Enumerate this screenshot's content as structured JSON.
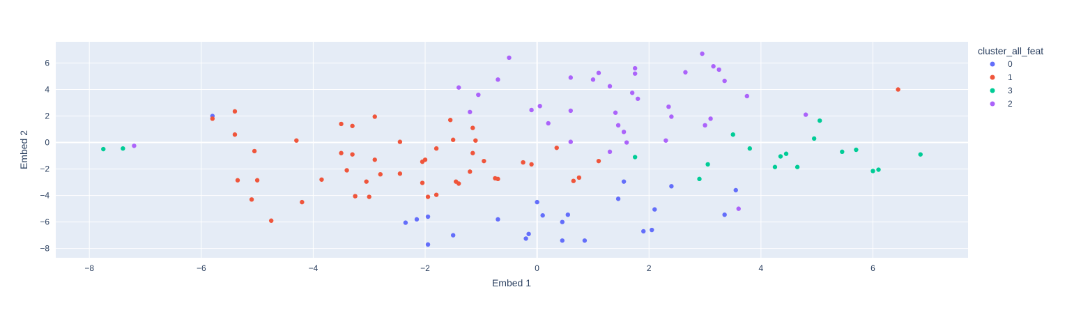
{
  "chart_data": {
    "type": "scatter",
    "xlabel": "Embed 1",
    "ylabel": "Embed 2",
    "xlim": [
      -8.6,
      7.7
    ],
    "ylim": [
      -8.7,
      7.6
    ],
    "xticks": [
      -8,
      -6,
      -4,
      -2,
      0,
      2,
      4,
      6
    ],
    "yticks": [
      -8,
      -6,
      -4,
      -2,
      0,
      2,
      4,
      6
    ],
    "grid": true,
    "legend": {
      "title": "cluster_all_feat",
      "placement": "right",
      "entries": [
        "0",
        "1",
        "3",
        "2"
      ]
    },
    "series": [
      {
        "name": "0",
        "color": "#636efa",
        "points": [
          [
            -5.8,
            2.0
          ],
          [
            -2.35,
            -6.05
          ],
          [
            -2.15,
            -5.8
          ],
          [
            -1.95,
            -5.6
          ],
          [
            -1.95,
            -7.7
          ],
          [
            -1.5,
            -7.0
          ],
          [
            -0.7,
            -5.8
          ],
          [
            -0.2,
            -7.25
          ],
          [
            -0.15,
            -6.9
          ],
          [
            0.0,
            -4.5
          ],
          [
            0.1,
            -5.5
          ],
          [
            0.45,
            -6.0
          ],
          [
            0.45,
            -7.4
          ],
          [
            0.55,
            -5.45
          ],
          [
            0.85,
            -7.4
          ],
          [
            1.45,
            -4.25
          ],
          [
            1.55,
            -2.95
          ],
          [
            1.9,
            -6.7
          ],
          [
            2.05,
            -6.6
          ],
          [
            2.1,
            -5.05
          ],
          [
            2.4,
            -3.3
          ],
          [
            3.55,
            -3.6
          ],
          [
            3.35,
            -5.45
          ]
        ]
      },
      {
        "name": "1",
        "color": "#ef553b",
        "points": [
          [
            -5.8,
            1.8
          ],
          [
            -5.4,
            2.35
          ],
          [
            -5.4,
            0.6
          ],
          [
            -5.35,
            -2.85
          ],
          [
            -5.05,
            -0.65
          ],
          [
            -5.0,
            -2.85
          ],
          [
            -5.1,
            -4.3
          ],
          [
            -4.75,
            -5.9
          ],
          [
            -4.3,
            0.15
          ],
          [
            -4.2,
            -4.5
          ],
          [
            -3.85,
            -2.8
          ],
          [
            -3.5,
            1.4
          ],
          [
            -3.5,
            -0.8
          ],
          [
            -3.4,
            -2.1
          ],
          [
            -3.3,
            1.25
          ],
          [
            -3.3,
            -0.9
          ],
          [
            -3.25,
            -4.05
          ],
          [
            -3.05,
            -2.95
          ],
          [
            -3.0,
            -4.1
          ],
          [
            -2.9,
            1.95
          ],
          [
            -2.9,
            -1.3
          ],
          [
            -2.8,
            -2.4
          ],
          [
            -2.45,
            0.05
          ],
          [
            -2.45,
            -2.35
          ],
          [
            -2.05,
            -3.05
          ],
          [
            -2.05,
            -1.45
          ],
          [
            -2.0,
            -1.3
          ],
          [
            -1.95,
            -4.1
          ],
          [
            -1.8,
            -3.95
          ],
          [
            -1.8,
            -0.45
          ],
          [
            -1.55,
            1.7
          ],
          [
            -1.5,
            0.2
          ],
          [
            -1.45,
            -2.95
          ],
          [
            -1.4,
            -3.1
          ],
          [
            -1.2,
            -2.2
          ],
          [
            -1.15,
            1.1
          ],
          [
            -1.15,
            -0.8
          ],
          [
            -1.1,
            0.15
          ],
          [
            -0.95,
            -1.4
          ],
          [
            -0.75,
            -2.7
          ],
          [
            -0.7,
            -2.75
          ],
          [
            -0.25,
            -1.5
          ],
          [
            -0.1,
            -1.65
          ],
          [
            0.35,
            -0.4
          ],
          [
            0.65,
            -2.9
          ],
          [
            0.75,
            -2.65
          ],
          [
            1.1,
            -1.4
          ],
          [
            6.45,
            4.0
          ]
        ]
      },
      {
        "name": "3",
        "color": "#00cc96",
        "points": [
          [
            -7.75,
            -0.5
          ],
          [
            -7.4,
            -0.45
          ],
          [
            1.75,
            -1.1
          ],
          [
            2.9,
            -2.75
          ],
          [
            3.05,
            -1.65
          ],
          [
            3.5,
            0.6
          ],
          [
            3.8,
            -0.45
          ],
          [
            4.25,
            -1.85
          ],
          [
            4.35,
            -1.05
          ],
          [
            4.45,
            -0.85
          ],
          [
            4.65,
            -1.85
          ],
          [
            4.95,
            0.3
          ],
          [
            5.05,
            1.65
          ],
          [
            5.45,
            -0.7
          ],
          [
            5.7,
            -0.55
          ],
          [
            6.0,
            -2.15
          ],
          [
            6.1,
            -2.05
          ],
          [
            6.85,
            -0.9
          ]
        ]
      },
      {
        "name": "2",
        "color": "#ab63fa",
        "points": [
          [
            -7.2,
            -0.25
          ],
          [
            -1.4,
            4.15
          ],
          [
            -1.2,
            2.3
          ],
          [
            -1.05,
            3.6
          ],
          [
            -0.7,
            4.75
          ],
          [
            -0.5,
            6.4
          ],
          [
            -0.1,
            2.45
          ],
          [
            0.05,
            2.75
          ],
          [
            0.2,
            1.45
          ],
          [
            0.6,
            4.9
          ],
          [
            0.6,
            2.4
          ],
          [
            0.6,
            0.05
          ],
          [
            1.0,
            4.75
          ],
          [
            1.1,
            5.25
          ],
          [
            1.3,
            4.25
          ],
          [
            1.3,
            -0.7
          ],
          [
            1.4,
            2.25
          ],
          [
            1.45,
            1.3
          ],
          [
            1.55,
            0.8
          ],
          [
            1.6,
            0.0
          ],
          [
            1.7,
            3.75
          ],
          [
            1.75,
            5.6
          ],
          [
            1.75,
            5.2
          ],
          [
            1.8,
            3.3
          ],
          [
            2.3,
            0.15
          ],
          [
            2.35,
            2.7
          ],
          [
            2.4,
            1.95
          ],
          [
            2.65,
            5.3
          ],
          [
            2.95,
            6.7
          ],
          [
            3.0,
            1.3
          ],
          [
            3.1,
            1.8
          ],
          [
            3.15,
            5.75
          ],
          [
            3.25,
            5.5
          ],
          [
            3.35,
            4.65
          ],
          [
            3.6,
            -5.0
          ],
          [
            3.75,
            3.5
          ],
          [
            4.8,
            2.1
          ]
        ]
      }
    ]
  }
}
